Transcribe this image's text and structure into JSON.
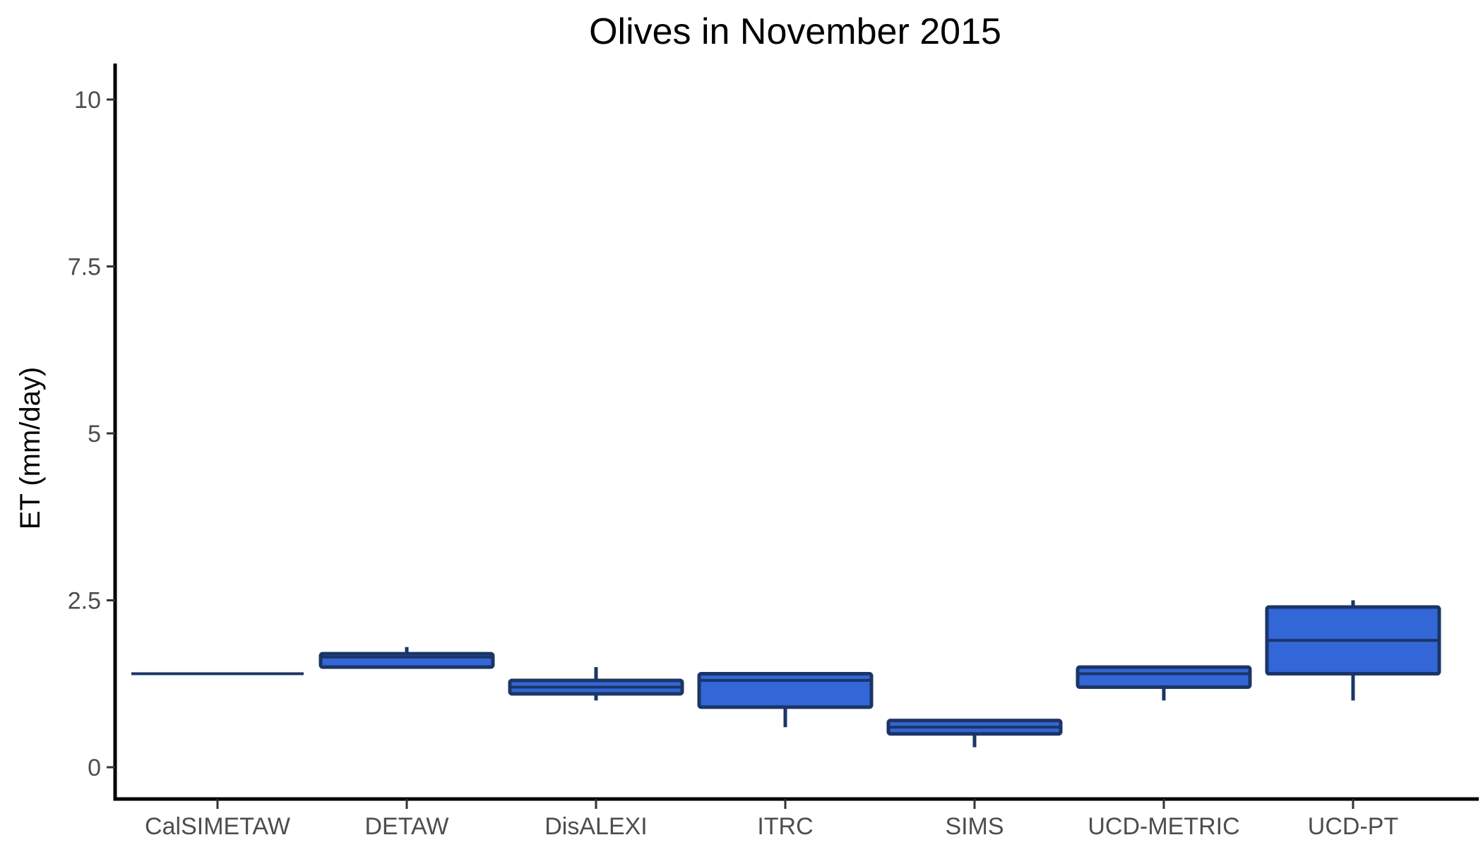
{
  "chart_data": {
    "type": "boxplot",
    "title": "Olives in November 2015",
    "xlabel": "",
    "ylabel": "ET (mm/day)",
    "ylim": [
      -0.5,
      10.5
    ],
    "yticks": [
      0,
      2.5,
      5,
      7.5,
      10
    ],
    "ytick_labels": [
      "0",
      "2.5",
      "5",
      "7.5",
      "10"
    ],
    "grid": false,
    "legend": "none",
    "fill_color": "#3366d6",
    "outline_color": "#1b3566",
    "categories": [
      "CalSIMETAW",
      "DETAW",
      "DisALEXI",
      "ITRC",
      "SIMS",
      "UCD-METRIC",
      "UCD-PT"
    ],
    "boxes": [
      {
        "category": "CalSIMETAW",
        "min": 1.4,
        "q1": 1.4,
        "median": 1.4,
        "q3": 1.4,
        "max": 1.4
      },
      {
        "category": "DETAW",
        "min": 1.5,
        "q1": 1.5,
        "median": 1.65,
        "q3": 1.7,
        "max": 1.8
      },
      {
        "category": "DisALEXI",
        "min": 1.0,
        "q1": 1.1,
        "median": 1.2,
        "q3": 1.3,
        "max": 1.5
      },
      {
        "category": "ITRC",
        "min": 0.6,
        "q1": 0.9,
        "median": 1.3,
        "q3": 1.4,
        "max": 1.4
      },
      {
        "category": "SIMS",
        "min": 0.3,
        "q1": 0.5,
        "median": 0.6,
        "q3": 0.7,
        "max": 0.7
      },
      {
        "category": "UCD-METRIC",
        "min": 1.0,
        "q1": 1.2,
        "median": 1.4,
        "q3": 1.5,
        "max": 1.5
      },
      {
        "category": "UCD-PT",
        "min": 1.0,
        "q1": 1.4,
        "median": 1.9,
        "q3": 2.4,
        "max": 2.5
      }
    ]
  }
}
